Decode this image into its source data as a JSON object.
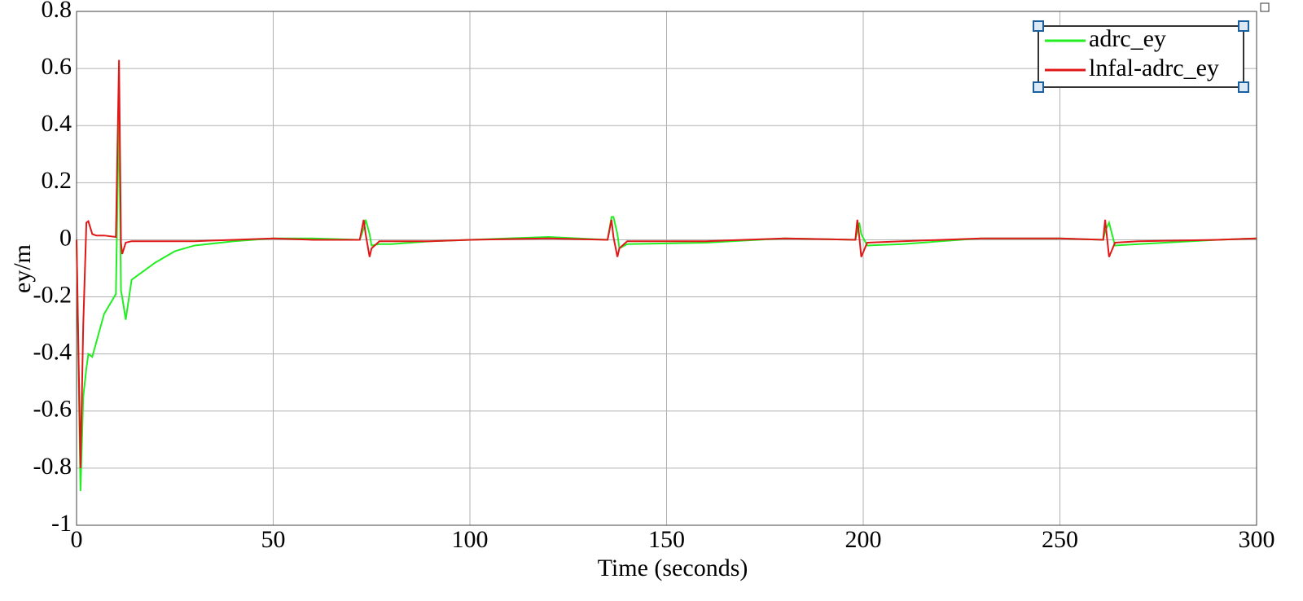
{
  "chart_data": {
    "type": "line",
    "x_label": "Time (seconds)",
    "y_label": "ey/m",
    "x": [
      0,
      1,
      1.7,
      2.5,
      3,
      4,
      5,
      7,
      10,
      10.8,
      11.3,
      11.6,
      12.5,
      14,
      16,
      20,
      25,
      30,
      40,
      50,
      60,
      72,
      73,
      73.5,
      74.5,
      75,
      77,
      80,
      90,
      100,
      120,
      135,
      136,
      136.5,
      137.5,
      138,
      140,
      160,
      180,
      198,
      198.5,
      199,
      199.5,
      201,
      210,
      230,
      250,
      261,
      261.5,
      262.5,
      264,
      270,
      290,
      300
    ],
    "series": [
      {
        "name": "adrc_ey",
        "color": "#22ee22",
        "values": [
          0,
          -0.88,
          -0.55,
          -0.45,
          -0.4,
          -0.41,
          -0.36,
          -0.26,
          -0.19,
          0.45,
          -0.18,
          -0.2,
          -0.28,
          -0.14,
          -0.12,
          -0.08,
          -0.04,
          -0.02,
          -0.005,
          0.005,
          0.005,
          0,
          0.04,
          0.07,
          0.02,
          -0.02,
          -0.015,
          -0.015,
          -0.005,
          0,
          0.01,
          0,
          0.08,
          0.08,
          0.02,
          -0.03,
          -0.015,
          -0.01,
          0.005,
          0,
          0.03,
          0.06,
          0.02,
          -0.02,
          -0.015,
          0.005,
          0.005,
          0,
          0.03,
          0.06,
          -0.02,
          -0.015,
          0,
          0.005
        ]
      },
      {
        "name": "lnfal-adrc_ey",
        "color": "#e01818",
        "values": [
          0,
          -0.8,
          -0.3,
          0.06,
          0.065,
          0.02,
          0.015,
          0.015,
          0.01,
          0.63,
          -0.01,
          -0.05,
          -0.01,
          -0.005,
          -0.005,
          -0.005,
          -0.005,
          -0.005,
          0,
          0.005,
          0,
          0,
          0.07,
          0.02,
          -0.06,
          -0.03,
          -0.005,
          -0.005,
          -0.005,
          0,
          0.005,
          0,
          0.07,
          0.01,
          -0.06,
          -0.03,
          -0.005,
          -0.005,
          0.005,
          0,
          0.07,
          0.01,
          -0.06,
          -0.01,
          -0.005,
          0.005,
          0.005,
          0,
          0.07,
          -0.06,
          -0.01,
          -0.005,
          0,
          0.005
        ]
      }
    ],
    "xlim": [
      0,
      300
    ],
    "xticks": [
      0,
      50,
      100,
      150,
      200,
      250,
      300
    ],
    "ylim": [
      -1,
      0.8
    ],
    "yticks": [
      -1,
      -0.8,
      -0.6,
      -0.4,
      -0.2,
      0,
      0.2,
      0.4,
      0.6,
      0.8
    ],
    "grid": true,
    "legend": "upper right"
  }
}
